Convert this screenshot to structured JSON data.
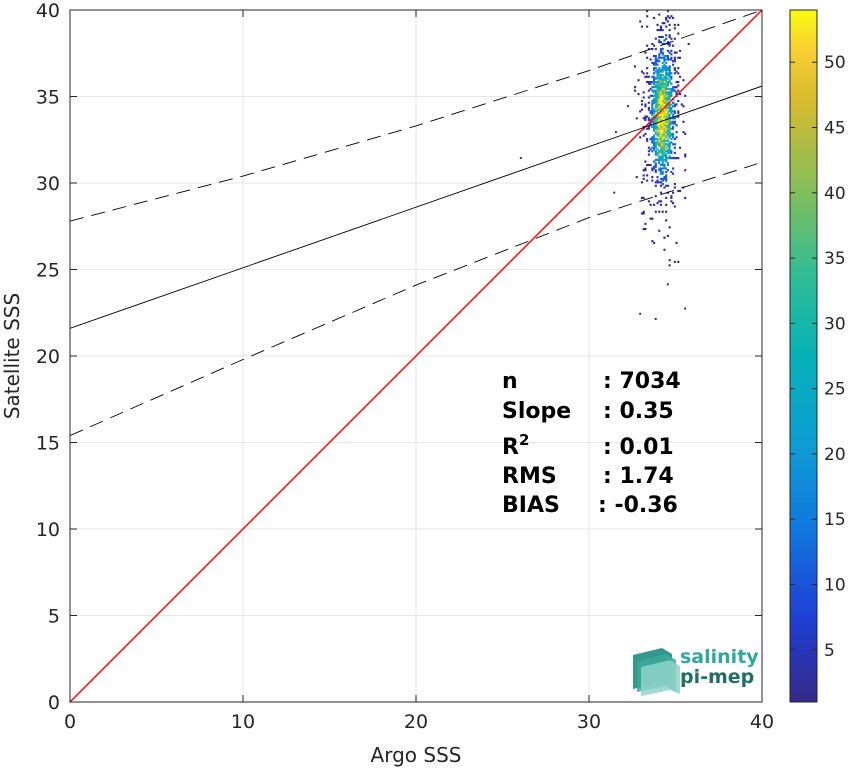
{
  "chart_data": {
    "type": "scatter",
    "subtype": "2d-density-histogram",
    "xlabel": "Argo SSS",
    "ylabel": "Satellite SSS",
    "xlim": [
      0,
      40
    ],
    "ylim": [
      0,
      40
    ],
    "xticks": [
      0,
      10,
      20,
      30,
      40
    ],
    "yticks": [
      0,
      5,
      10,
      15,
      20,
      25,
      30,
      35,
      40
    ],
    "grid": true,
    "colorbar": {
      "colormap": "parula",
      "range": [
        1,
        54
      ],
      "ticks": [
        5,
        10,
        15,
        20,
        25,
        30,
        35,
        40,
        45,
        50
      ]
    },
    "lines": [
      {
        "style": "identity",
        "color": "#ff0000",
        "points": [
          [
            0,
            0
          ],
          [
            40,
            40
          ]
        ]
      },
      {
        "style": "regression",
        "color": "#000000",
        "points": [
          [
            0,
            21.6
          ],
          [
            40,
            35.6
          ]
        ]
      },
      {
        "style": "upper-bound-dashed",
        "color": "#000000",
        "points": [
          [
            0,
            27.8
          ],
          [
            10,
            30.4
          ],
          [
            20,
            33.3
          ],
          [
            30,
            36.5
          ],
          [
            40,
            40.0
          ]
        ]
      },
      {
        "style": "lower-bound-dashed",
        "color": "#000000",
        "points": [
          [
            0,
            15.4
          ],
          [
            10,
            19.8
          ],
          [
            20,
            24.1
          ],
          [
            30,
            28.0
          ],
          [
            40,
            31.2
          ]
        ]
      }
    ],
    "density_cluster": {
      "x_center": 34.2,
      "y_center": 33.6,
      "x_spread": 0.45,
      "y_spread": 2.2,
      "peak_count": 54
    },
    "outliers": [
      [
        26.0,
        31.5
      ],
      [
        31.4,
        29.5
      ],
      [
        35.5,
        22.8
      ],
      [
        32.9,
        22.5
      ],
      [
        33.8,
        22.2
      ],
      [
        32.2,
        34.5
      ],
      [
        31.5,
        33.0
      ],
      [
        35.4,
        29.8
      ],
      [
        34.5,
        24.2
      ]
    ],
    "stats": [
      {
        "label": "n",
        "value": ": 7034"
      },
      {
        "label": "Slope",
        "value": ": 0.35"
      },
      {
        "label": "R",
        "sup": "2",
        "value": ": 0.01"
      },
      {
        "label": "RMS",
        "value": ": 1.74"
      },
      {
        "label": "BIAS",
        "value": ": -0.36"
      }
    ]
  },
  "logo": {
    "line1": "salinity",
    "line2": "pi-mep"
  }
}
